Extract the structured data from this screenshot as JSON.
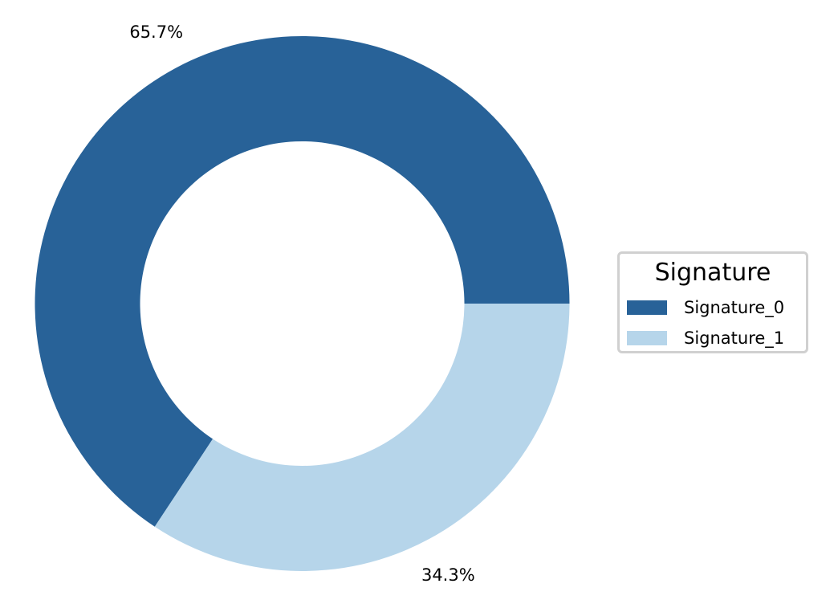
{
  "chart_data": {
    "type": "pie",
    "style": "donut",
    "categories": [
      "Signature_0",
      "Signature_1"
    ],
    "values": [
      65.7,
      34.3
    ],
    "slice_labels": [
      "65.7%",
      "34.3%"
    ],
    "colors": [
      "#286298",
      "#b6d5ea"
    ],
    "legend": {
      "title": "Signature",
      "placement": "center-right",
      "entries": [
        "Signature_0",
        "Signature_1"
      ]
    }
  }
}
